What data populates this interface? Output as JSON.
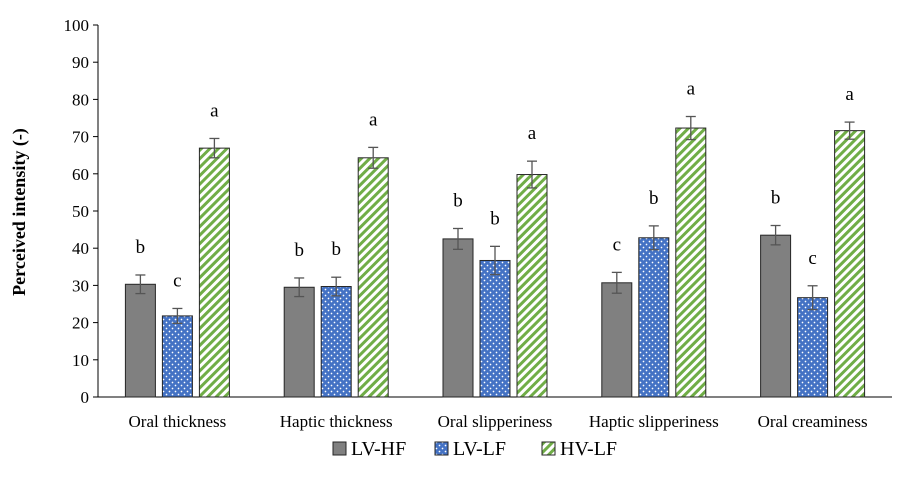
{
  "chart_data": {
    "type": "bar",
    "ylabel": "Perceived intensity (-)",
    "ylim": [
      0,
      100
    ],
    "yticks": [
      0,
      10,
      20,
      30,
      40,
      50,
      60,
      70,
      80,
      90,
      100
    ],
    "grid": false,
    "legend_position": "bottom",
    "categories": [
      "Oral thickness",
      "Haptic thickness",
      "Oral slipperiness",
      "Haptic slipperiness",
      "Oral creaminess"
    ],
    "series": [
      {
        "name": "LV-HF",
        "color": "#808080",
        "pattern": "solid",
        "values": [
          30.3,
          29.5,
          42.5,
          30.7,
          43.5
        ],
        "errors": [
          2.5,
          2.5,
          2.8,
          2.8,
          2.6
        ],
        "letters": [
          "b",
          "b",
          "b",
          "c",
          "b"
        ]
      },
      {
        "name": "LV-LF",
        "color": "#4472c4",
        "pattern": "dotted",
        "values": [
          21.8,
          29.7,
          36.7,
          42.8,
          26.7
        ],
        "errors": [
          2.0,
          2.5,
          3.8,
          3.2,
          3.2
        ],
        "letters": [
          "c",
          "b",
          "b",
          "b",
          "c"
        ]
      },
      {
        "name": "HV-LF",
        "color": "#70ad47",
        "pattern": "diagonal-stripes",
        "values": [
          66.9,
          64.3,
          59.8,
          72.3,
          71.6
        ],
        "errors": [
          2.6,
          2.8,
          3.6,
          3.1,
          2.3
        ],
        "letters": [
          "a",
          "a",
          "a",
          "a",
          "a"
        ]
      }
    ]
  }
}
